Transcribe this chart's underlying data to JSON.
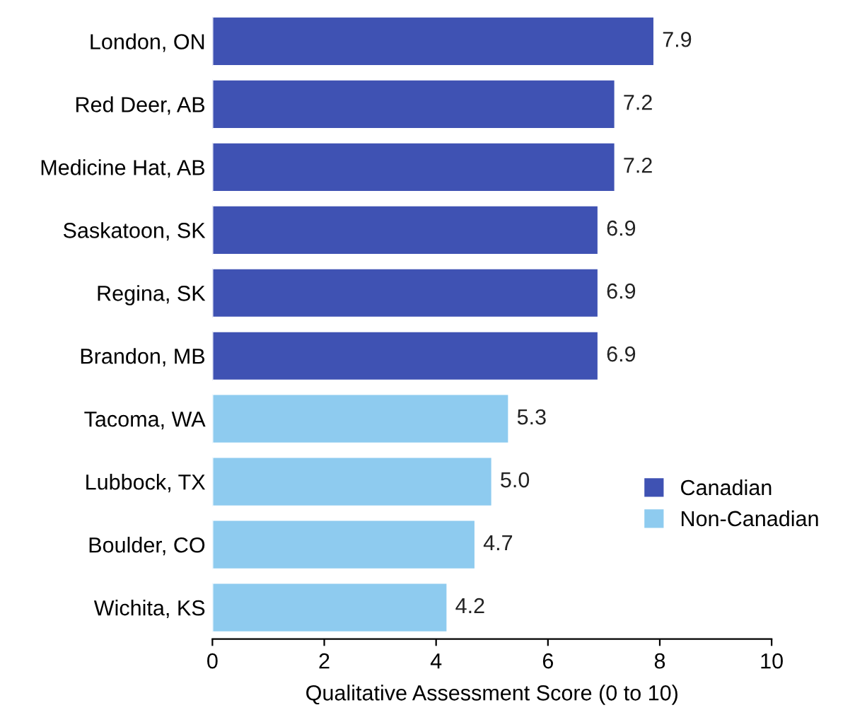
{
  "chart_data": {
    "type": "bar",
    "orientation": "horizontal",
    "xlabel": "Qualitative Assessment Score (0 to 10)",
    "categories": [
      "London, ON",
      "Red Deer, AB",
      "Medicine Hat, AB",
      "Saskatoon, SK",
      "Regina, SK",
      "Brandon, MB",
      "Tacoma, WA",
      "Lubbock, TX",
      "Boulder, CO",
      "Wichita, KS"
    ],
    "series": [
      {
        "name": "Canadian",
        "color": "#3f52b3",
        "values": [
          7.9,
          7.2,
          7.2,
          6.9,
          6.9,
          6.9,
          null,
          null,
          null,
          null
        ],
        "value_labels": [
          "7.9",
          "7.2",
          "7.2",
          "6.9",
          "6.9",
          "6.9",
          null,
          null,
          null,
          null
        ]
      },
      {
        "name": "Non-Canadian",
        "color": "#8ecbef",
        "values": [
          null,
          null,
          null,
          null,
          null,
          null,
          5.3,
          5.0,
          4.7,
          4.2
        ],
        "value_labels": [
          null,
          null,
          null,
          null,
          null,
          null,
          "5.3",
          "5.0",
          "4.7",
          "4.2"
        ]
      }
    ],
    "xlim": [
      0,
      10
    ],
    "xticks": [
      0,
      2,
      4,
      6,
      8,
      10
    ],
    "legend": "bottom right",
    "grid": false
  }
}
